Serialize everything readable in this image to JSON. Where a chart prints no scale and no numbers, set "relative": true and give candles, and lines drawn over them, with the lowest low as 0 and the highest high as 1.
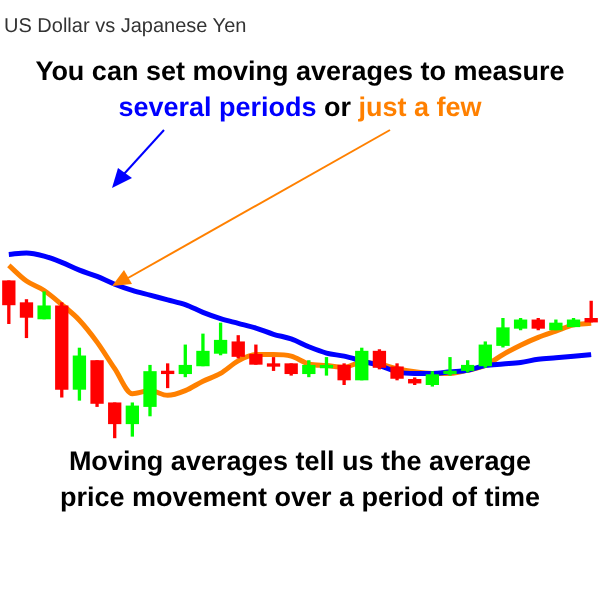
{
  "chart_data": {
    "type": "candlestick",
    "relative": true,
    "title": "US Dollar vs Japanese Yen",
    "annotations": [
      "You can set moving averages to measure",
      "or",
      "Moving averages tell us the average price movement over a period of time"
    ],
    "categories": [
      null,
      null,
      null,
      null,
      null,
      null,
      null,
      null,
      null,
      null,
      null,
      null,
      null,
      null,
      null,
      null,
      null,
      null,
      null,
      null,
      null,
      null,
      null,
      null,
      null,
      null,
      null,
      null,
      null,
      null,
      null,
      null,
      null,
      null
    ],
    "ohlc": [
      [
        1.0,
        1.0,
        0.73,
        0.85
      ],
      [
        0.86,
        0.88,
        0.64,
        0.77
      ],
      [
        0.76,
        0.93,
        0.76,
        0.84
      ],
      [
        0.84,
        0.86,
        0.26,
        0.31
      ],
      [
        0.31,
        0.57,
        0.24,
        0.52
      ],
      [
        0.49,
        0.49,
        0.2,
        0.22
      ],
      [
        0.22,
        0.22,
        0,
        0.09
      ],
      [
        0.09,
        0.22,
        0.01,
        0.2
      ],
      [
        0.2,
        0.46,
        0.14,
        0.42
      ],
      [
        0.42,
        0.47,
        0.32,
        0.41
      ],
      [
        0.41,
        0.59,
        0.39,
        0.46
      ],
      [
        0.46,
        0.66,
        0.46,
        0.55
      ],
      [
        0.54,
        0.73,
        0.53,
        0.62
      ],
      [
        0.61,
        0.65,
        0.51,
        0.52
      ],
      [
        0.53,
        0.59,
        0.47,
        0.47
      ],
      [
        0.47,
        0.51,
        0.43,
        0.47
      ],
      [
        0.47,
        0.47,
        0.4,
        0.41
      ],
      [
        0.41,
        0.49,
        0.39,
        0.46
      ],
      [
        0.46,
        0.51,
        0.4,
        0.46
      ],
      [
        0.46,
        0.47,
        0.34,
        0.37
      ],
      [
        0.37,
        0.57,
        0.37,
        0.55
      ],
      [
        0.55,
        0.56,
        0.44,
        0.45
      ],
      [
        0.45,
        0.47,
        0.37,
        0.38
      ],
      [
        0.37,
        0.38,
        0.34,
        0.35
      ],
      [
        0.34,
        0.42,
        0.33,
        0.4
      ],
      [
        0.41,
        0.51,
        0.4,
        0.42
      ],
      [
        0.43,
        0.49,
        0.42,
        0.46
      ],
      [
        0.46,
        0.61,
        0.45,
        0.59
      ],
      [
        0.59,
        0.76,
        0.58,
        0.7
      ],
      [
        0.7,
        0.76,
        0.69,
        0.75
      ],
      [
        0.75,
        0.76,
        0.69,
        0.7
      ],
      [
        0.69,
        0.75,
        0.69,
        0.73
      ],
      [
        0.71,
        0.76,
        0.71,
        0.75
      ],
      [
        0.76,
        0.87,
        0.74,
        0.74
      ]
    ],
    "colors": [
      "#ff0000",
      "#ff0000",
      "#00ff00",
      "#ff0000",
      "#00ff00",
      "#ff0000",
      "#ff0000",
      "#00ff00",
      "#00ff00",
      "#ff0000",
      "#00ff00",
      "#00ff00",
      "#00ff00",
      "#ff0000",
      "#ff0000",
      "#ff0000",
      "#ff0000",
      "#00ff00",
      "#00ff00",
      "#ff0000",
      "#00ff00",
      "#ff0000",
      "#ff0000",
      "#ff0000",
      "#00ff00",
      "#00ff00",
      "#00ff00",
      "#00ff00",
      "#00ff00",
      "#00ff00",
      "#ff0000",
      "#00ff00",
      "#00ff00",
      "#ff0000"
    ],
    "series": [
      {
        "name": "several periods",
        "type": "line",
        "color": "#0000ff",
        "values": [
          1.17,
          1.18,
          1.16,
          1.12,
          1.07,
          1.03,
          0.98,
          0.94,
          0.91,
          0.88,
          0.85,
          0.8,
          0.76,
          0.73,
          0.7,
          0.66,
          0.63,
          0.58,
          0.54,
          0.52,
          0.49,
          0.46,
          0.42,
          0.41,
          0.41,
          0.42,
          0.43,
          0.46,
          0.47,
          0.48,
          0.5,
          0.51,
          0.52,
          0.53
        ]
      },
      {
        "name": "just a few",
        "type": "line",
        "color": "#ff8000",
        "values": [
          1.1,
          1.0,
          0.94,
          0.85,
          0.75,
          0.61,
          0.44,
          0.28,
          0.3,
          0.27,
          0.3,
          0.36,
          0.41,
          0.49,
          0.53,
          0.53,
          0.52,
          0.47,
          0.46,
          0.45,
          0.48,
          0.47,
          0.44,
          0.42,
          0.41,
          0.41,
          0.43,
          0.46,
          0.53,
          0.59,
          0.64,
          0.68,
          0.72,
          0.73
        ]
      }
    ]
  }
}
